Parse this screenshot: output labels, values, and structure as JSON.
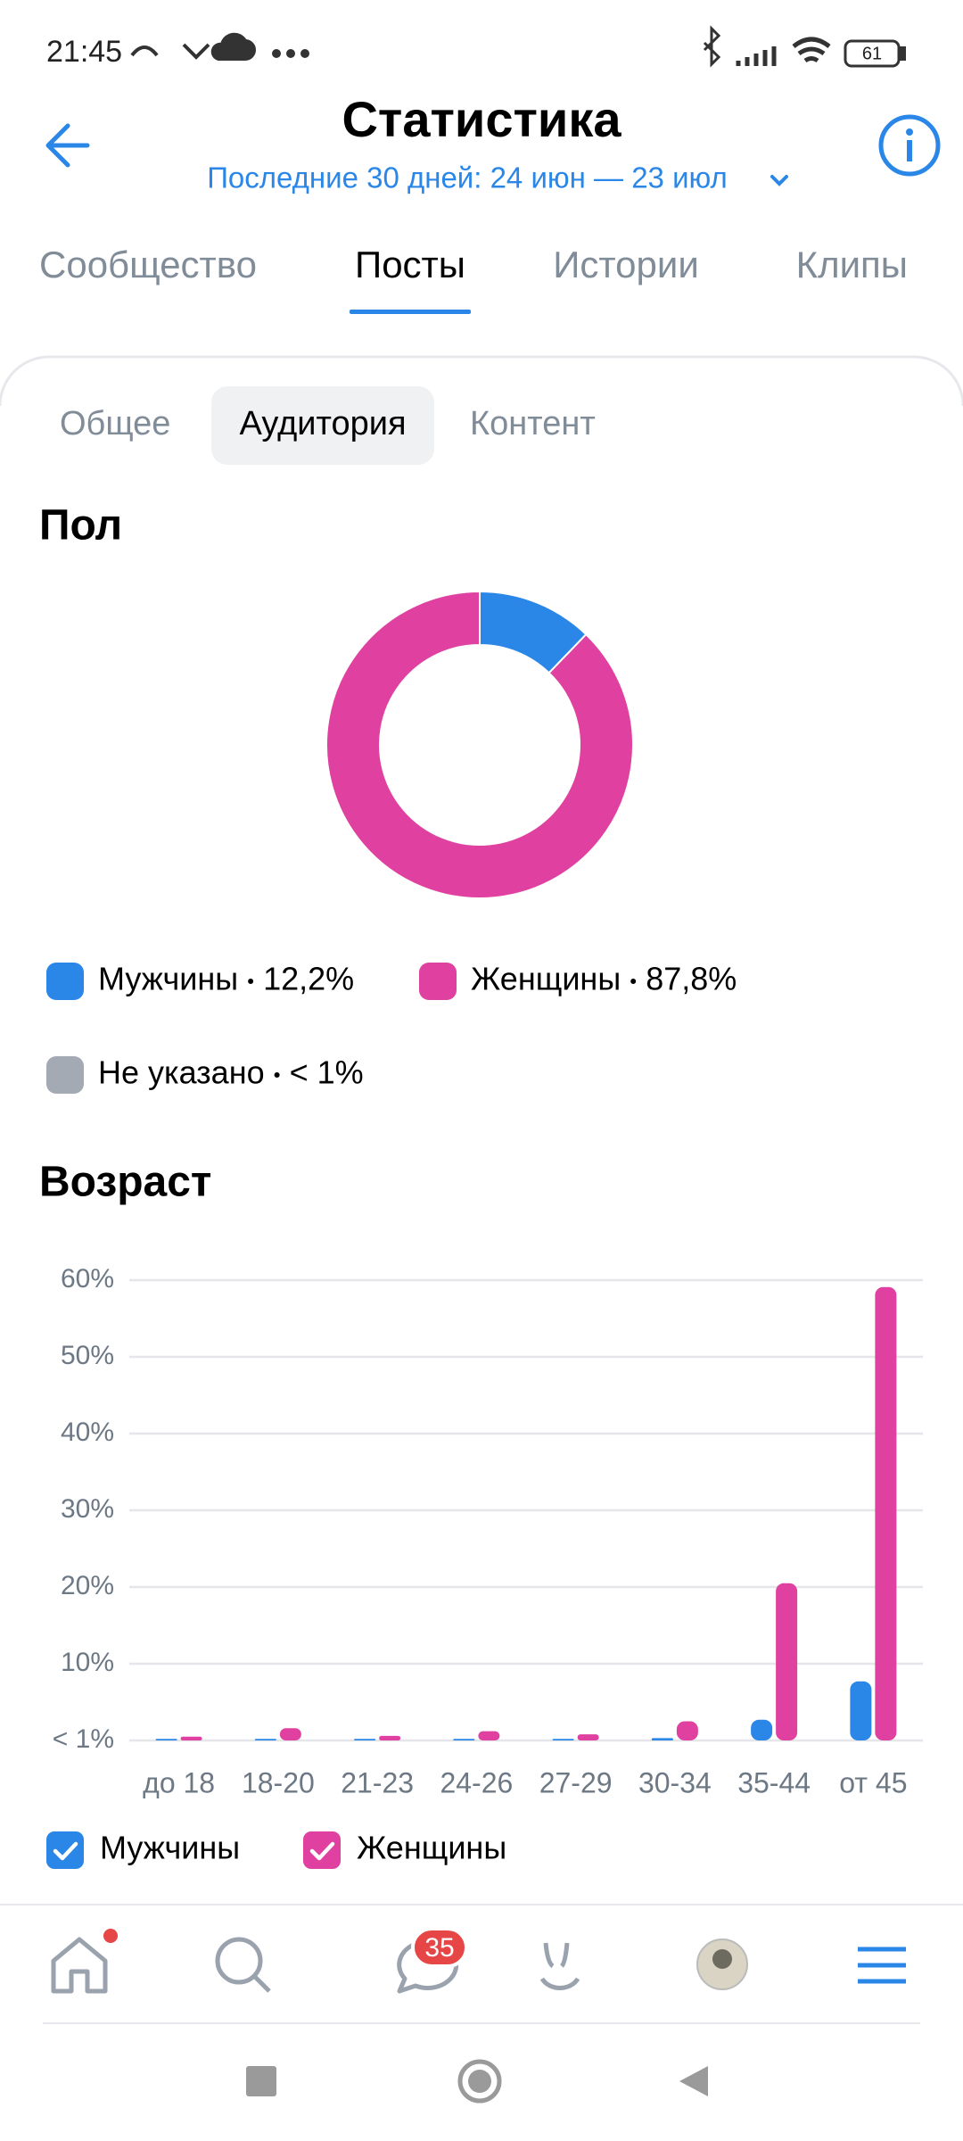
{
  "status_bar": {
    "time": "21:45",
    "battery": "61"
  },
  "header": {
    "title": "Статистика",
    "period": "Последние 30 дней: 24 июн — 23 июл"
  },
  "tabs": [
    "Сообщество",
    "Посты",
    "Истории",
    "Клипы"
  ],
  "subtabs": [
    "Общее",
    "Аудитория",
    "Контент"
  ],
  "chart_data": [
    {
      "type": "pie",
      "title": "Пол",
      "categories": [
        "Мужчины",
        "Женщины",
        "Не указано"
      ],
      "values": [
        12.2,
        87.8,
        0
      ],
      "value_labels": [
        "12,2%",
        "87,8%",
        "< 1%"
      ],
      "colors": [
        "#2a87e8",
        "#e0409f",
        "#a3aab3"
      ]
    },
    {
      "type": "bar",
      "title": "Возраст",
      "categories": [
        "до 18",
        "18-20",
        "21-23",
        "24-26",
        "27-29",
        "30-34",
        "35-44",
        "от 45"
      ],
      "series": [
        {
          "name": "Мужчины",
          "color": "#2a87e8",
          "values": [
            0.2,
            0.2,
            0.2,
            0.2,
            0.2,
            0.3,
            2.7,
            7.7
          ]
        },
        {
          "name": "Женщины",
          "color": "#e0409f",
          "values": [
            0.5,
            1.6,
            0.6,
            1.2,
            0.8,
            2.5,
            20.5,
            59.1
          ]
        }
      ],
      "ylim": [
        0,
        60
      ],
      "yticks": [
        {
          "value": 0,
          "label": "< 1%"
        },
        {
          "value": 10,
          "label": "10%"
        },
        {
          "value": 20,
          "label": "20%"
        },
        {
          "value": 30,
          "label": "30%"
        },
        {
          "value": 40,
          "label": "40%"
        },
        {
          "value": 50,
          "label": "50%"
        },
        {
          "value": 60,
          "label": "60%"
        }
      ],
      "grid": true
    }
  ],
  "bottom_nav": {
    "messages_badge": "35"
  }
}
